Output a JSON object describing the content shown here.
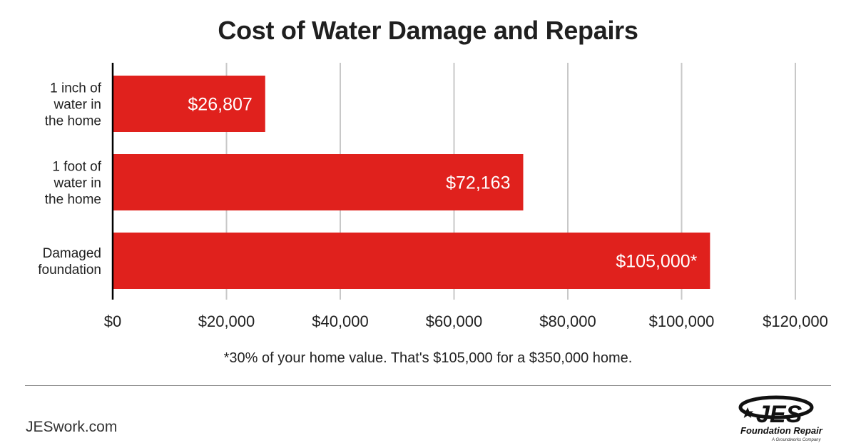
{
  "title": "Cost of Water Damage and Repairs",
  "footnote": "*30% of your home value. That's $105,000 for a $350,000 home.",
  "site": "JESwork.com",
  "logo": {
    "wordmark": "JES",
    "name": "Foundation Repair",
    "tagline": "A Groundworks Company"
  },
  "colors": {
    "bar": "#e0211d",
    "grid": "#c8c8c8",
    "axis": "#000000",
    "text": "#1f1f1f"
  },
  "chart_data": {
    "type": "bar",
    "orientation": "horizontal",
    "title": "Cost of Water Damage and Repairs",
    "categories": [
      [
        "1 inch of",
        "water in",
        "the home"
      ],
      [
        "1 foot of",
        "water in",
        "the home"
      ],
      [
        "Damaged",
        "foundation"
      ]
    ],
    "values": [
      26807,
      72163,
      105000
    ],
    "value_labels": [
      "$26,807",
      "$72,163",
      "$105,000*"
    ],
    "xlim": [
      0,
      120000
    ],
    "xticks": [
      0,
      20000,
      40000,
      60000,
      80000,
      100000,
      120000
    ],
    "xtick_labels": [
      "$0",
      "$20,000",
      "$40,000",
      "$60,000",
      "$80,000",
      "$100,000",
      "$120,000"
    ],
    "grid": "vertical",
    "legend": "none"
  }
}
